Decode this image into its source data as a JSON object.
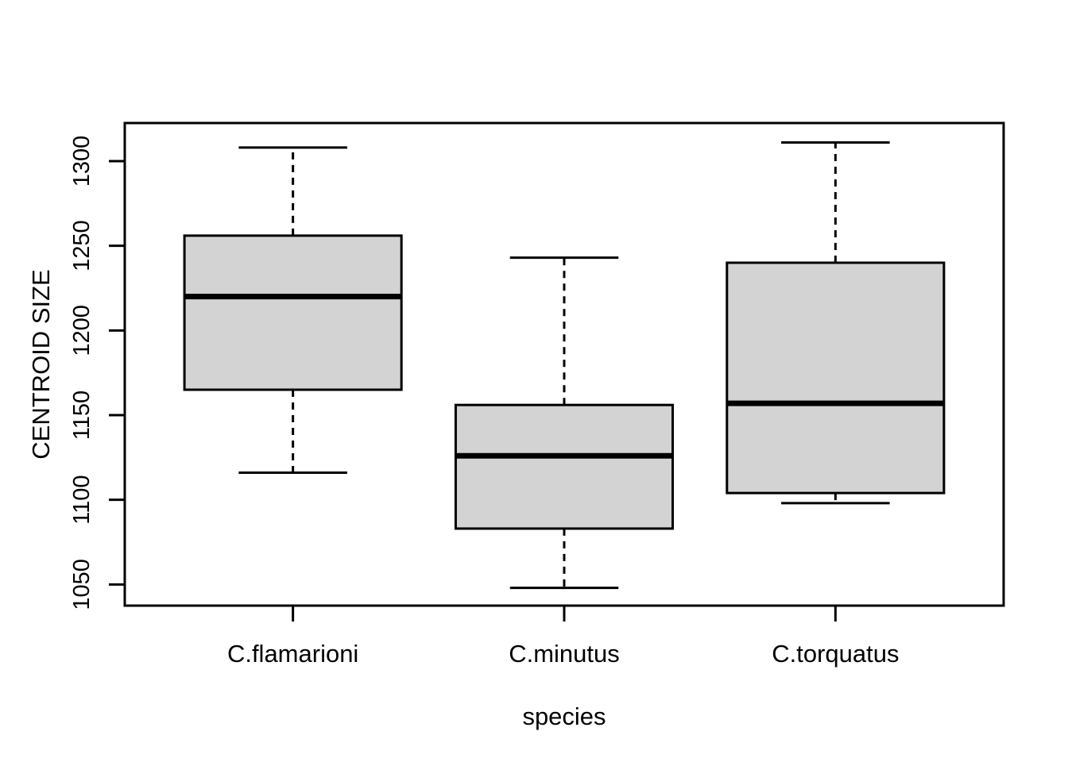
{
  "figure": {
    "background": "#ffffff"
  },
  "chart_data": {
    "type": "boxplot",
    "title": "",
    "xlabel": "species",
    "ylabel": "CENTROID SIZE",
    "categories": [
      "C.flamarioni",
      "C.minutus",
      "C.torquatus"
    ],
    "series": [
      {
        "name": "C.flamarioni",
        "whisker_low": 1116,
        "q1": 1165,
        "median": 1220,
        "q3": 1256,
        "whisker_high": 1308,
        "outliers": []
      },
      {
        "name": "C.minutus",
        "whisker_low": 1048,
        "q1": 1083,
        "median": 1126,
        "q3": 1156,
        "whisker_high": 1243,
        "outliers": []
      },
      {
        "name": "C.torquatus",
        "whisker_low": 1098,
        "q1": 1104,
        "median": 1157,
        "q3": 1240,
        "whisker_high": 1311,
        "outliers": []
      }
    ],
    "x_positions": [
      1,
      2,
      3
    ],
    "y_ticks": [
      1050,
      1100,
      1150,
      1200,
      1250,
      1300
    ],
    "ylim": [
      1037.5,
      1322.5
    ],
    "xlim": [
      0.38,
      3.62
    ],
    "box_width": 0.8,
    "cap_width": 0.4,
    "grid": false,
    "legend_position": "none",
    "colors": {
      "box_fill": "#d3d3d3",
      "stroke": "#000000",
      "background": "#ffffff"
    }
  }
}
